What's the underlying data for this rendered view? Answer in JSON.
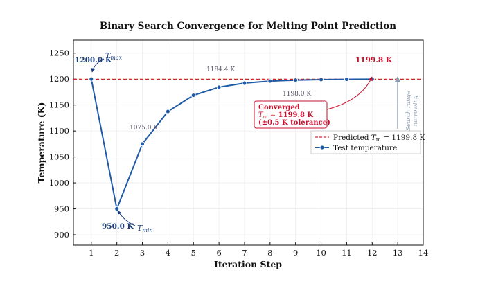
{
  "chart_data": {
    "type": "line",
    "title": "Binary Search Convergence for Melting Point Prediction",
    "xlabel": "Iteration Step",
    "ylabel": "Temperature (K)",
    "xlim": [
      0.3,
      14
    ],
    "ylim": [
      880,
      1275
    ],
    "xticks": [
      1,
      2,
      3,
      4,
      5,
      6,
      7,
      8,
      9,
      10,
      11,
      12,
      13,
      14
    ],
    "yticks": [
      900,
      950,
      1000,
      1050,
      1100,
      1150,
      1200,
      1250
    ],
    "grid": true,
    "legend_position": "center-right",
    "series": [
      {
        "name": "Test temperature",
        "color": "#1f5aa6",
        "x": [
          1,
          2,
          3,
          4,
          5,
          6,
          7,
          8,
          9,
          10,
          11,
          12
        ],
        "y": [
          1200.0,
          950.0,
          1075.0,
          1137.5,
          1168.75,
          1184.4,
          1192.2,
          1196.1,
          1198.0,
          1199.0,
          1199.5,
          1199.8
        ]
      }
    ],
    "reference_line": {
      "name": "Predicted",
      "legend_label_prefix": "Predicted ",
      "legend_label_symbol": "T",
      "legend_label_sub": "m",
      "legend_label_suffix": " = 1199.8 K",
      "value": 1199.8,
      "color": "#d62728"
    },
    "annotations": {
      "tmax_value": "1200.0 K",
      "tmax_symbol": "T",
      "tmax_sub": "max",
      "tmin_value": "950.0 K",
      "tmin_symbol": "T",
      "tmin_sub": "min",
      "p3_label": "1075.0 K",
      "p6_label": "1184.4 K",
      "p9_label": "1198.0 K",
      "final_label": "1199.8 K",
      "converged_title": "Converged",
      "converged_tm_symbol": "T",
      "converged_tm_sub": "m",
      "converged_tm_value": " = 1199.8 K",
      "converged_tolerance": "(±0.5 K tolerance)",
      "range_line1": "Search range",
      "range_line2": "narrowing"
    },
    "colors": {
      "line": "#1f5aa6",
      "reference": "#d62728",
      "converged_box": "#c8102e",
      "narrow_arrow": "#8a9bb0"
    }
  }
}
